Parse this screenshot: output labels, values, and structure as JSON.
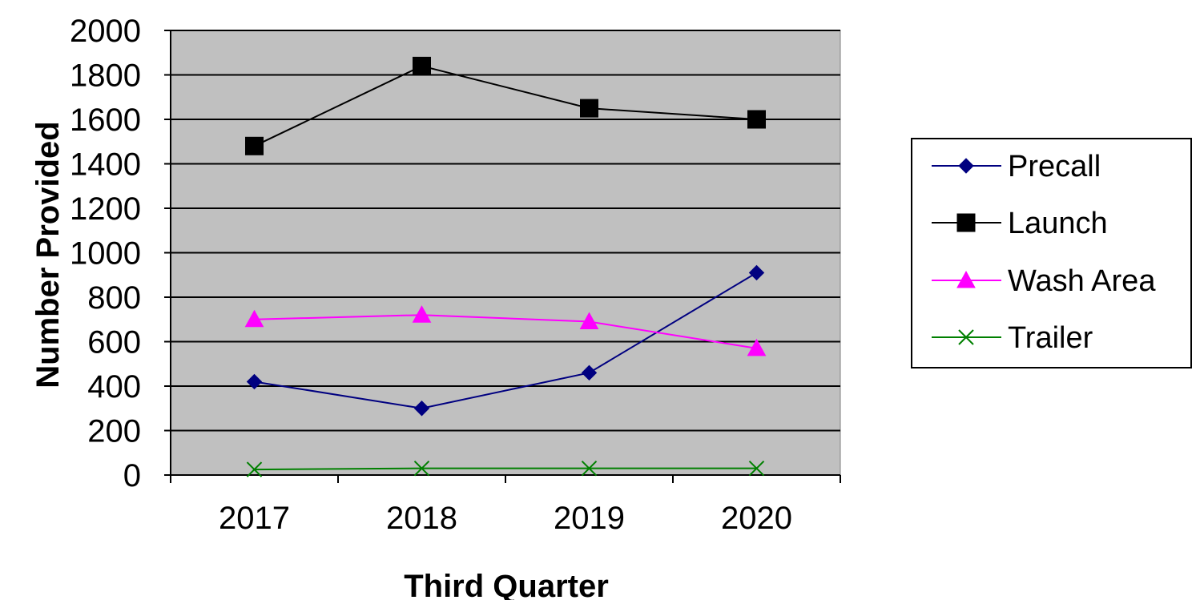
{
  "chart_data": {
    "type": "line",
    "title": "",
    "xlabel": "Third Quarter",
    "ylabel": "Number Provided",
    "categories": [
      "2017",
      "2018",
      "2019",
      "2020"
    ],
    "ylim": [
      0,
      2000
    ],
    "yticks": [
      "0",
      "200",
      "400",
      "600",
      "800",
      "1000",
      "1200",
      "1400",
      "1600",
      "1800",
      "2000"
    ],
    "grid": true,
    "plot_background": "#c0c0c0",
    "legend_position": "right",
    "series": [
      {
        "name": "Precall",
        "values": [
          420,
          300,
          460,
          910
        ],
        "color": "#000080",
        "marker": "diamond"
      },
      {
        "name": "Launch",
        "values": [
          1480,
          1840,
          1650,
          1600
        ],
        "color": "#000000",
        "marker": "square"
      },
      {
        "name": "Wash Area",
        "values": [
          700,
          720,
          690,
          570
        ],
        "color": "#ff00ff",
        "marker": "triangle"
      },
      {
        "name": "Trailer",
        "values": [
          25,
          30,
          30,
          30
        ],
        "color": "#008000",
        "marker": "x"
      }
    ]
  }
}
